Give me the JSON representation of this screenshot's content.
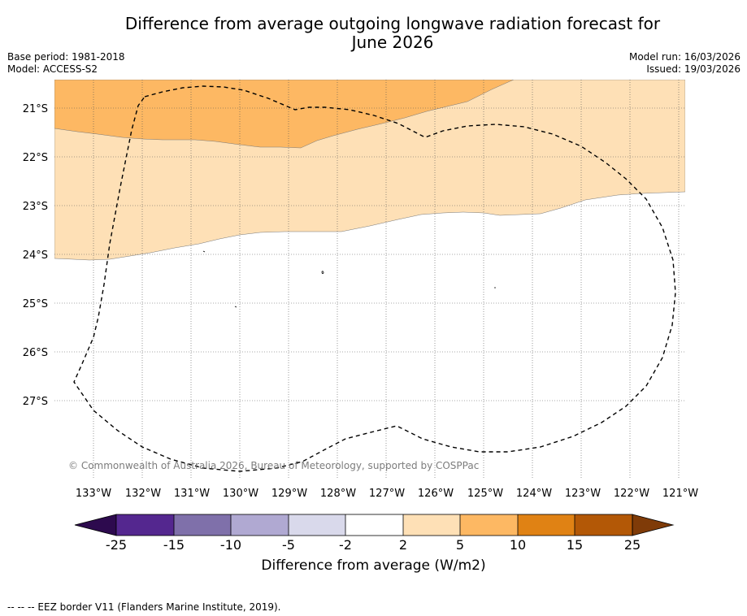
{
  "title_line1": "Difference from average outgoing longwave radiation forecast for",
  "title_line2": "June 2026",
  "base_period": "Base period: 1981-2018",
  "model": "Model: ACCESS-S2",
  "model_run": "Model run: 16/03/2026",
  "issued": "Issued: 19/03/2026",
  "copyright": "© Commonwealth of Australia 2026, Bureau of Meteorology, supported by COSPPac",
  "lat_labels": [
    "21°S",
    "22°S",
    "23°S",
    "24°S",
    "25°S",
    "26°S",
    "27°S"
  ],
  "lon_labels": [
    "133°W",
    "132°W",
    "131°W",
    "130°W",
    "129°W",
    "128°W",
    "127°W",
    "126°W",
    "125°W",
    "124°W",
    "123°W",
    "122°W",
    "121°W"
  ],
  "colorbar": {
    "title": "Difference from average (W/m2)",
    "tick_labels": [
      "-25",
      "-15",
      "-10",
      "-5",
      "-2",
      "2",
      "5",
      "10",
      "15",
      "25"
    ],
    "colors": [
      "#2d0a4e",
      "#54278f",
      "#7f70aa",
      "#b0a9d2",
      "#d9d9eb",
      "#ffffff",
      "#fee0b6",
      "#fdb863",
      "#e08214",
      "#b35806",
      "#7f3b08"
    ]
  },
  "map_colors": {
    "band_2_5": "#fee0b6",
    "band_5_10": "#fdb863",
    "neutral": "#ffffff"
  },
  "eez_legend": "--  --  -- EEZ border V11 (Flanders Marine Institute, 2019)."
}
